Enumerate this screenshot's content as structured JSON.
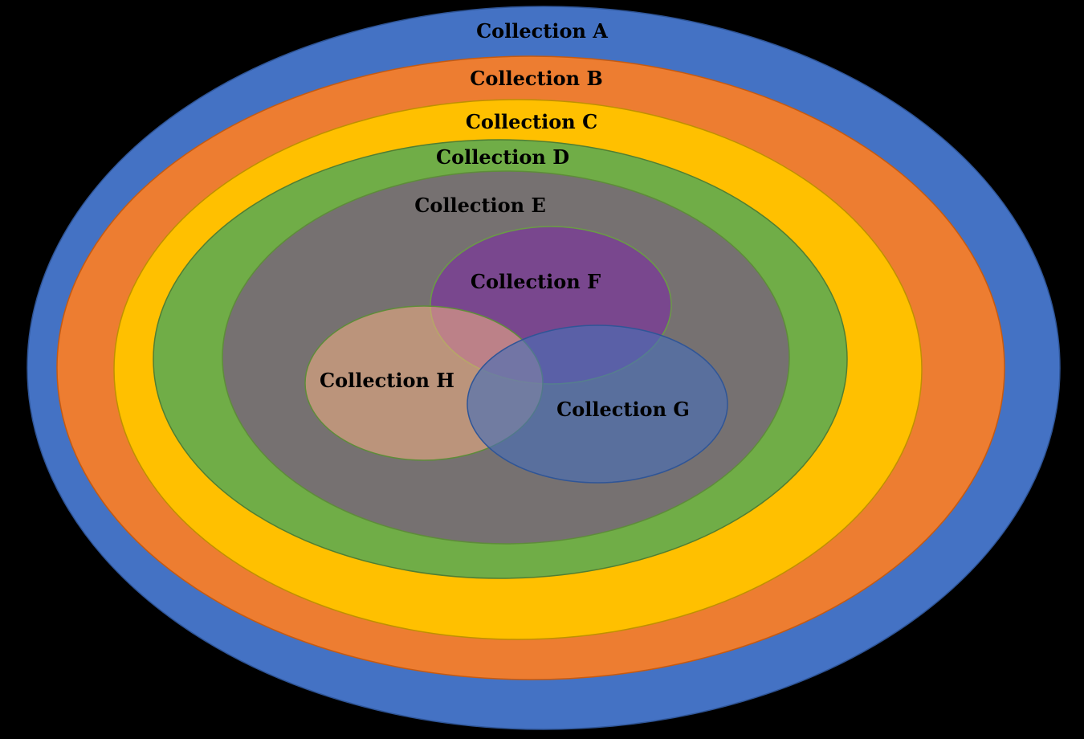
{
  "background": "#000000",
  "collections": {
    "a": {
      "label": "Collection A",
      "fill": "#4472C4",
      "stroke": "#2F5597"
    },
    "b": {
      "label": "Collection B",
      "fill": "#ED7D31",
      "stroke": "#C55A11"
    },
    "c": {
      "label": "Collection C",
      "fill": "#FFC000",
      "stroke": "#BF9000"
    },
    "d": {
      "label": "Collection D",
      "fill": "#70AD47",
      "stroke": "#507E32"
    },
    "e": {
      "label": "Collection E",
      "fill": "#767171",
      "stroke": "#5E8C3A"
    },
    "f": {
      "label": "Collection F",
      "fill": "#7A3F93",
      "stroke": "#6A9C45"
    },
    "h": {
      "label": "Collection H",
      "fill": "#F4B183",
      "stroke": "#5E8C3A"
    },
    "g": {
      "label": "Collection G",
      "fill": "#4A6FB5",
      "stroke": "#2F5597"
    }
  }
}
